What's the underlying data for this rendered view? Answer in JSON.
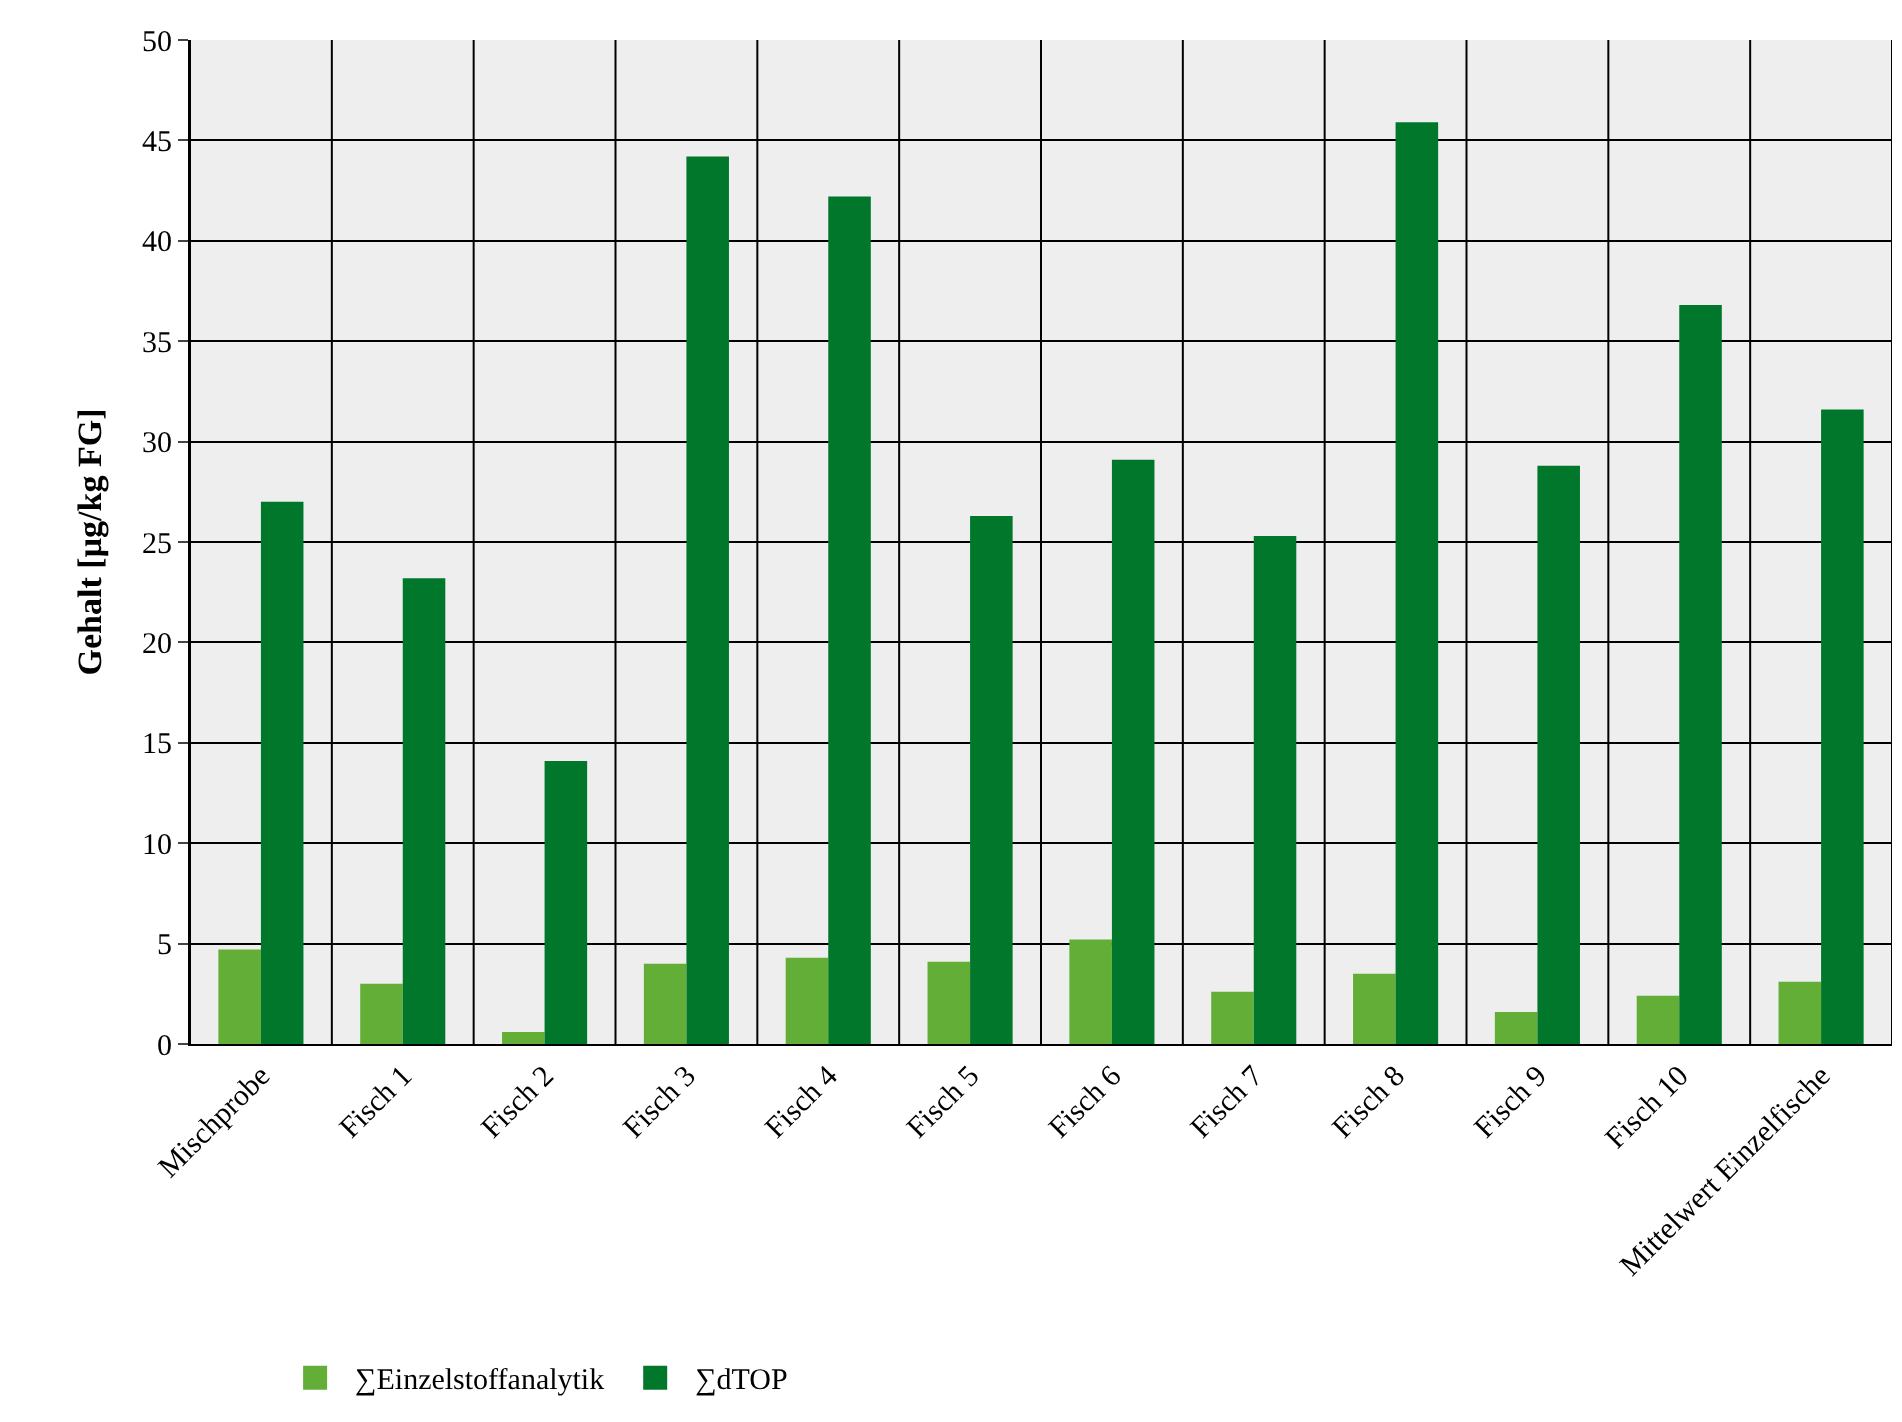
{
  "chart_data": {
    "type": "bar",
    "ylabel": "Gehalt [µg/kg FG]",
    "categories": [
      "Mischprobe",
      "Fisch 1",
      "Fisch 2",
      "Fisch 3",
      "Fisch 4",
      "Fisch 5",
      "Fisch 6",
      "Fisch 7",
      "Fisch 8",
      "Fisch 9",
      "Fisch 10",
      "Mittelwert Einzelfische"
    ],
    "series": [
      {
        "name": "∑Einzelstoffanalytik",
        "color": "#62ae37",
        "values": [
          4.7,
          3.0,
          0.6,
          4.0,
          4.3,
          4.1,
          5.2,
          2.6,
          3.5,
          1.6,
          2.4,
          3.1
        ]
      },
      {
        "name": "∑dTOP",
        "color": "#00772b",
        "values": [
          27.0,
          23.2,
          14.1,
          44.2,
          42.2,
          26.3,
          29.1,
          25.3,
          45.9,
          28.8,
          36.8,
          31.6
        ]
      }
    ],
    "ylim": [
      0,
      50
    ],
    "yticks": [
      0,
      5,
      10,
      15,
      20,
      25,
      30,
      35,
      40,
      45,
      50
    ],
    "grid": true,
    "legend": "bottom left"
  }
}
